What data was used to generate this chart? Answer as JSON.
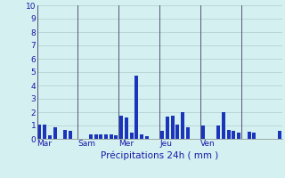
{
  "title": "",
  "xlabel": "Précipitations 24h ( mm )",
  "ylim": [
    0,
    10
  ],
  "yticks": [
    0,
    1,
    2,
    3,
    4,
    5,
    6,
    7,
    8,
    9,
    10
  ],
  "background_color": "#d4f0f0",
  "bar_color": "#1a35bb",
  "grid_color": "#b0cccc",
  "sep_color": "#555577",
  "day_labels": [
    "Mar",
    "Sam",
    "Mer",
    "Jeu",
    "Ven"
  ],
  "day_sep_indices": [
    0,
    8,
    16,
    24,
    32,
    40
  ],
  "values": [
    1.1,
    1.1,
    0.3,
    0.9,
    0.0,
    0.7,
    0.6,
    0.0,
    0.0,
    0.0,
    0.35,
    0.35,
    0.35,
    0.35,
    0.35,
    0.3,
    1.75,
    1.6,
    0.5,
    4.75,
    0.35,
    0.2,
    0.0,
    0.0,
    0.6,
    1.65,
    1.75,
    1.1,
    2.0,
    0.9,
    0.0,
    0.0,
    1.0,
    0.0,
    0.0,
    1.0,
    2.0,
    0.65,
    0.6,
    0.5,
    0.0,
    0.55,
    0.5,
    0.0,
    0.0,
    0.0,
    0.0,
    0.6
  ]
}
